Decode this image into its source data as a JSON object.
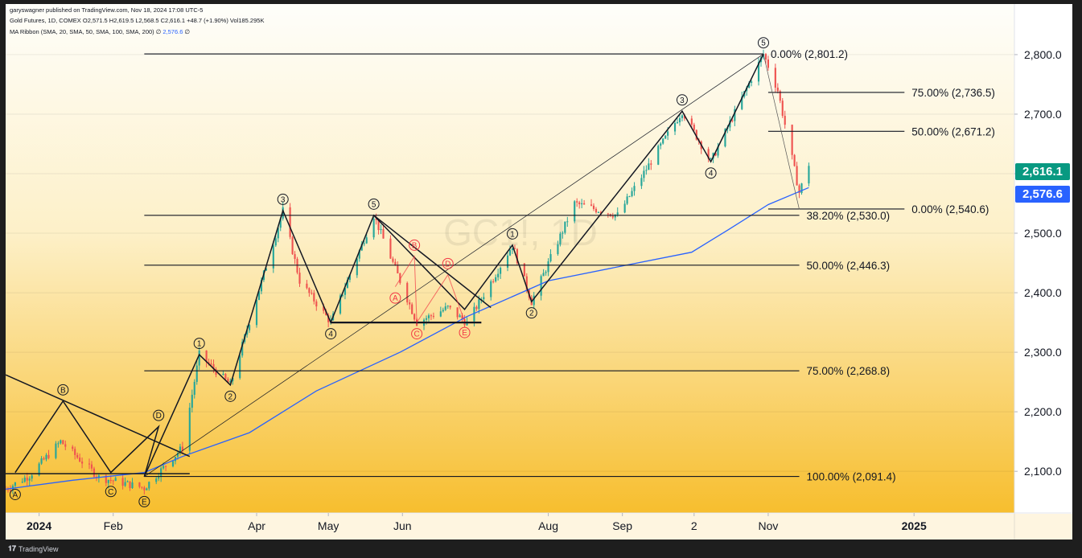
{
  "header": {
    "published_line": "garyswagner published on TradingView.com, Nov 18, 2024 17:08 UTC-5",
    "symbol_line": "Gold Futures, 1D, COMEX  O2,571.5  H2,619.5  L2,568.5  C2,616.1  +48.7 (+1.90%)  Vol185.295K",
    "indicator_name": "MA Ribbon (SMA, 20, SMA, 50, SMA, 100, SMA, 200) ∅ ",
    "indicator_value": "2,576.6",
    "indicator_suffix": " ∅"
  },
  "footer": {
    "brand": "TradingView",
    "logo": "𝟏𝟕"
  },
  "colors": {
    "up": "#26a69a",
    "down": "#ef5350",
    "ma": "#2962ff",
    "bg_top": "#fefefa",
    "bg_bottom": "#f7be2e",
    "last_price_badge": "#089981",
    "ma_badge": "#2962ff",
    "annotation_red": "#f23645"
  },
  "last_price": "2,616.1",
  "ma_price": "2,576.6",
  "watermark": "GC1!, 1D",
  "chart_data": {
    "type": "candlestick",
    "ylim": [
      2030,
      2885
    ],
    "y_ticks": [
      2100,
      2200,
      2300,
      2400,
      2500,
      2600,
      2700,
      2800
    ],
    "y_tick_labels": [
      "2,100.0",
      "2,200.0",
      "2,300.0",
      "2,400.0",
      "2,500.0",
      "2,600.0",
      "2,700.0",
      "2,800.0"
    ],
    "x_range": [
      "2023-12-18",
      "2025-02-12"
    ],
    "x_ticks": [
      {
        "date": "2024-01-01",
        "label": "2024",
        "bold": true
      },
      {
        "date": "2024-02-01",
        "label": "Feb"
      },
      {
        "date": "2024-04-01",
        "label": "Apr"
      },
      {
        "date": "2024-05-01",
        "label": "May"
      },
      {
        "date": "2024-06-01",
        "label": "Jun"
      },
      {
        "date": "2024-08-01",
        "label": "Aug"
      },
      {
        "date": "2024-09-01",
        "label": "Sep"
      },
      {
        "date": "2024-10-01",
        "label": "2"
      },
      {
        "date": "2024-11-01",
        "label": "Nov"
      },
      {
        "date": "2025-01-01",
        "label": "2025",
        "bold": true
      }
    ],
    "price_path": [
      [
        "2023-12-18",
        2070
      ],
      [
        "2023-12-28",
        2093
      ],
      [
        "2024-01-10",
        2150
      ],
      [
        "2024-01-26",
        2090
      ],
      [
        "2024-02-14",
        2072
      ],
      [
        "2024-03-01",
        2140
      ],
      [
        "2024-03-08",
        2296
      ],
      [
        "2024-03-21",
        2245
      ],
      [
        "2024-04-12",
        2538
      ],
      [
        "2024-04-19",
        2420
      ],
      [
        "2024-05-02",
        2350
      ],
      [
        "2024-05-20",
        2530
      ],
      [
        "2024-06-07",
        2350
      ],
      [
        "2024-06-20",
        2375
      ],
      [
        "2024-06-28",
        2349
      ],
      [
        "2024-07-17",
        2480
      ],
      [
        "2024-07-25",
        2385
      ],
      [
        "2024-08-12",
        2550
      ],
      [
        "2024-08-30",
        2530
      ],
      [
        "2024-09-26",
        2705
      ],
      [
        "2024-10-08",
        2620
      ],
      [
        "2024-10-30",
        2801
      ],
      [
        "2024-11-05",
        2740
      ],
      [
        "2024-11-14",
        2568
      ],
      [
        "2024-11-18",
        2616
      ]
    ],
    "ma_path": [
      [
        "2023-12-18",
        2070
      ],
      [
        "2024-01-15",
        2085
      ],
      [
        "2024-02-14",
        2098
      ],
      [
        "2024-03-01",
        2125
      ],
      [
        "2024-03-29",
        2165
      ],
      [
        "2024-04-26",
        2235
      ],
      [
        "2024-05-31",
        2300
      ],
      [
        "2024-06-28",
        2360
      ],
      [
        "2024-08-01",
        2420
      ],
      [
        "2024-09-01",
        2445
      ],
      [
        "2024-09-30",
        2468
      ],
      [
        "2024-10-15",
        2505
      ],
      [
        "2024-11-01",
        2548
      ],
      [
        "2024-11-18",
        2576.6
      ]
    ],
    "fib_levels": [
      {
        "value": 2801.2,
        "label": "0.00% (2,801.2)",
        "from": "2024-02-14",
        "to": "2024-10-30"
      },
      {
        "value": 2530.0,
        "label": "38.20% (2,530.0)",
        "from": "2024-02-14",
        "to": "2024-11-14"
      },
      {
        "value": 2446.3,
        "label": "50.00% (2,446.3)",
        "from": "2024-02-14",
        "to": "2024-11-14"
      },
      {
        "value": 2268.8,
        "label": "75.00% (2,268.8)",
        "from": "2024-02-14",
        "to": "2024-11-14"
      },
      {
        "value": 2091.4,
        "label": "100.00% (2,091.4)",
        "from": "2024-02-14",
        "to": "2024-11-14"
      },
      {
        "value": 2736.5,
        "label": "75.00% (2,736.5)",
        "from": "2024-11-01",
        "to": "2024-12-28"
      },
      {
        "value": 2671.2,
        "label": "50.00% (2,671.2)",
        "from": "2024-11-01",
        "to": "2024-12-28"
      },
      {
        "value": 2540.6,
        "label": "0.00% (2,540.6)",
        "from": "2024-11-01",
        "to": "2024-12-28"
      }
    ],
    "wave_labels": [
      {
        "t": "A",
        "date": "2023-12-22",
        "value": 2080,
        "pos": "below"
      },
      {
        "t": "B",
        "date": "2024-01-11",
        "value": 2218,
        "pos": "above"
      },
      {
        "t": "C",
        "date": "2024-01-31",
        "value": 2085,
        "pos": "below"
      },
      {
        "t": "D",
        "date": "2024-02-20",
        "value": 2175,
        "pos": "above"
      },
      {
        "t": "E",
        "date": "2024-02-14",
        "value": 2068,
        "pos": "below"
      },
      {
        "t": "1",
        "date": "2024-03-08",
        "value": 2296,
        "pos": "above"
      },
      {
        "t": "2",
        "date": "2024-03-21",
        "value": 2245,
        "pos": "below"
      },
      {
        "t": "3",
        "date": "2024-04-12",
        "value": 2538,
        "pos": "above"
      },
      {
        "t": "4",
        "date": "2024-05-02",
        "value": 2350,
        "pos": "below"
      },
      {
        "t": "5",
        "date": "2024-05-20",
        "value": 2530,
        "pos": "above"
      },
      {
        "t": "1",
        "date": "2024-07-17",
        "value": 2480,
        "pos": "above"
      },
      {
        "t": "2",
        "date": "2024-07-25",
        "value": 2385,
        "pos": "below"
      },
      {
        "t": "3",
        "date": "2024-09-26",
        "value": 2705,
        "pos": "above"
      },
      {
        "t": "4",
        "date": "2024-10-08",
        "value": 2620,
        "pos": "below"
      },
      {
        "t": "5",
        "date": "2024-10-30",
        "value": 2801,
        "pos": "above"
      }
    ],
    "red_wave_labels": [
      {
        "t": "A",
        "date": "2024-05-29",
        "value": 2410,
        "pos": "below"
      },
      {
        "t": "B",
        "date": "2024-06-06",
        "value": 2461,
        "pos": "above"
      },
      {
        "t": "C",
        "date": "2024-06-07",
        "value": 2350,
        "pos": "below"
      },
      {
        "t": "D",
        "date": "2024-06-20",
        "value": 2430,
        "pos": "above"
      },
      {
        "t": "E",
        "date": "2024-06-27",
        "value": 2352,
        "pos": "below"
      }
    ]
  }
}
